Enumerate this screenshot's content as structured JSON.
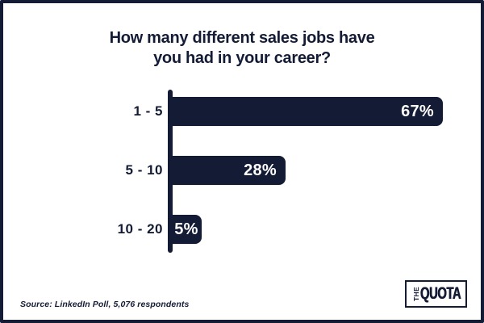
{
  "card": {
    "title_lines": [
      "How many different sales jobs have",
      "you had in your career?"
    ],
    "source": "Source: LinkedIn Poll, 5,076 respondents"
  },
  "chart_data": {
    "type": "bar",
    "orientation": "horizontal",
    "title": "How many different sales jobs have you had in your career?",
    "categories": [
      "1 - 5",
      "5 - 10",
      "10 - 20"
    ],
    "values": [
      67,
      28,
      5
    ],
    "value_labels": [
      "67%",
      "28%",
      "5%"
    ],
    "unit": "%",
    "xlim": [
      0,
      70
    ],
    "grid": false,
    "legend": false,
    "bar_color": "#141B35",
    "value_label_color": "#FFFFFF",
    "source": "Source: LinkedIn Poll, 5,076 respondents"
  },
  "logo": {
    "the": "THE",
    "quota": "QUOTA"
  },
  "colors": {
    "navy": "#141B35",
    "background": "#FFFFFF"
  }
}
